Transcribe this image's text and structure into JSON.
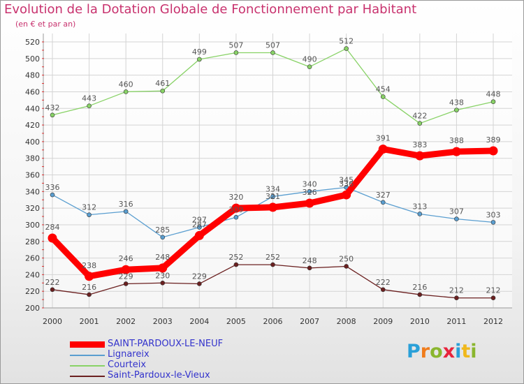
{
  "title": "Evolution de la Dotation Globale de Fonctionnement par Habitant",
  "subtitle": "(en € et par an)",
  "logo": {
    "text": "Proxiti",
    "letter_colors": [
      "#2aa0d8",
      "#f07c1c",
      "#8ab62e",
      "#e8243c",
      "#2aa0d8",
      "#f0b81c",
      "#8ab62e"
    ]
  },
  "chart_data": {
    "type": "line",
    "title": "Evolution de la Dotation Globale de Fonctionnement par Habitant",
    "subtitle": "(en € et par an)",
    "x": [
      "2000",
      "2001",
      "2002",
      "2003",
      "2004",
      "2005",
      "2006",
      "2007",
      "2008",
      "2009",
      "2010",
      "2011",
      "2012"
    ],
    "ylim": [
      200,
      520
    ],
    "yticks": [
      "200",
      "220",
      "240",
      "260",
      "280",
      "300",
      "320",
      "340",
      "360",
      "380",
      "400",
      "420",
      "440",
      "460",
      "480",
      "500",
      "520"
    ],
    "grid": true,
    "series": [
      {
        "name": "SAINT-PARDOUX-LE-NEUF",
        "color": "#ff0000",
        "thick": true,
        "values": [
          284,
          238,
          246,
          248,
          287,
          320,
          321,
          326,
          336,
          391,
          383,
          388,
          389
        ],
        "labels": [
          "284",
          "238",
          "246",
          "248",
          "287",
          "320",
          "321",
          "326",
          "336",
          "391",
          "383",
          "388",
          "389"
        ]
      },
      {
        "name": "Lignareix",
        "color": "#5a9ed0",
        "thick": false,
        "values": [
          336,
          312,
          316,
          285,
          297,
          309,
          334,
          340,
          345,
          327,
          313,
          307,
          303
        ],
        "labels": [
          "336",
          "312",
          "316",
          "285",
          "297",
          "309",
          "334",
          "340",
          "345",
          "327",
          "313",
          "307",
          "303"
        ]
      },
      {
        "name": "Courteix",
        "color": "#88d266",
        "thick": false,
        "values": [
          432,
          443,
          460,
          461,
          499,
          507,
          507,
          490,
          512,
          454,
          422,
          438,
          448
        ],
        "labels": [
          "432",
          "443",
          "460",
          "461",
          "499",
          "507",
          "507",
          "490",
          "512",
          "454",
          "422",
          "438",
          "448"
        ]
      },
      {
        "name": "Saint-Pardoux-le-Vieux",
        "color": "#6b2020",
        "thick": false,
        "values": [
          222,
          216,
          229,
          230,
          229,
          252,
          252,
          248,
          250,
          222,
          216,
          212,
          212
        ],
        "labels": [
          "222",
          "216",
          "229",
          "230",
          "229",
          "252",
          "252",
          "248",
          "250",
          "222",
          "216",
          "212",
          "212"
        ]
      }
    ]
  }
}
